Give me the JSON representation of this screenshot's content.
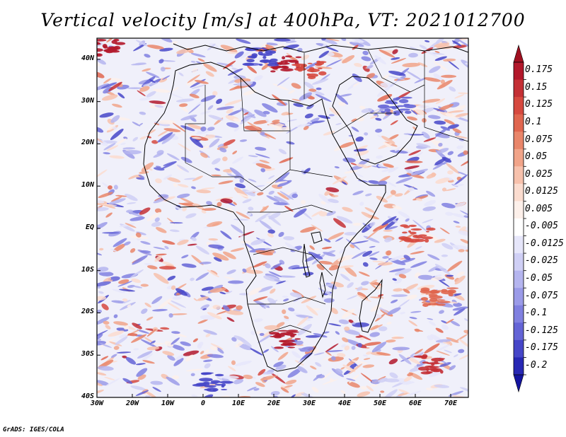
{
  "title": "Vertical velocity [m/s] at 400hPa, VT: 2021012700",
  "credit": "GrADS: IGES/COLA",
  "map": {
    "lon_range": [
      -30,
      75
    ],
    "lat_range": [
      -40,
      45
    ],
    "lat_ticks": [
      {
        "value": 40,
        "label": "40N"
      },
      {
        "value": 30,
        "label": "30N"
      },
      {
        "value": 20,
        "label": "20N"
      },
      {
        "value": 10,
        "label": "10N"
      },
      {
        "value": 0,
        "label": "EQ"
      },
      {
        "value": -10,
        "label": "10S"
      },
      {
        "value": -20,
        "label": "20S"
      },
      {
        "value": -30,
        "label": "30S"
      },
      {
        "value": -40,
        "label": "40S"
      }
    ],
    "lon_ticks": [
      {
        "value": -30,
        "label": "30W"
      },
      {
        "value": -20,
        "label": "20W"
      },
      {
        "value": -10,
        "label": "10W"
      },
      {
        "value": 0,
        "label": "0"
      },
      {
        "value": 10,
        "label": "10E"
      },
      {
        "value": 20,
        "label": "20E"
      },
      {
        "value": 30,
        "label": "30E"
      },
      {
        "value": 40,
        "label": "40E"
      },
      {
        "value": 50,
        "label": "50E"
      },
      {
        "value": 60,
        "label": "60E"
      },
      {
        "value": 70,
        "label": "70E"
      }
    ]
  },
  "colorbar": {
    "levels": [
      {
        "label": "0.175",
        "color": "#b2182b"
      },
      {
        "label": "0.15",
        "color": "#c43035"
      },
      {
        "label": "0.125",
        "color": "#d6493f"
      },
      {
        "label": "0.1",
        "color": "#e0664f"
      },
      {
        "label": "0.075",
        "color": "#e9866a"
      },
      {
        "label": "0.05",
        "color": "#f1a489"
      },
      {
        "label": "0.025",
        "color": "#f7c1ac"
      },
      {
        "label": "0.0125",
        "color": "#fbdccf"
      },
      {
        "label": "0.005",
        "color": "#fdf0ea"
      },
      {
        "label": "-0.005",
        "color": "#ffffff"
      },
      {
        "label": "-0.0125",
        "color": "#e6e6fa"
      },
      {
        "label": "-0.025",
        "color": "#cfcff5"
      },
      {
        "label": "-0.05",
        "color": "#b5b5ef"
      },
      {
        "label": "-0.075",
        "color": "#9b9be8"
      },
      {
        "label": "-0.1",
        "color": "#8080e0"
      },
      {
        "label": "-0.125",
        "color": "#6464d6"
      },
      {
        "label": "-0.175",
        "color": "#4646c8"
      },
      {
        "label": "-0.2",
        "color": "#2828b4"
      }
    ],
    "top_arrow_color": "#a01020",
    "bottom_arrow_color": "#1414a0",
    "positive_color": "#d04040",
    "negative_color": "#4848d0",
    "neutral_color": "#f0f0fa"
  }
}
